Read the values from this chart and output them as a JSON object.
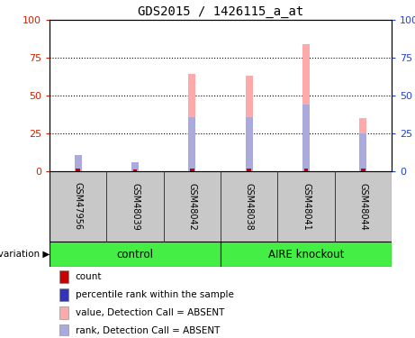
{
  "title": "GDS2015 / 1426115_a_at",
  "samples": [
    "GSM47956",
    "GSM48039",
    "GSM48042",
    "GSM48038",
    "GSM48041",
    "GSM48044"
  ],
  "control_indices": [
    0,
    1,
    2
  ],
  "knockout_indices": [
    3,
    4,
    5
  ],
  "group_names": [
    "control",
    "AIRE knockout"
  ],
  "group_color": "#44ee44",
  "sample_box_color": "#c8c8c8",
  "pink_bar_heights": [
    10,
    6,
    64,
    63,
    84,
    35
  ],
  "blue_bar_heights": [
    11,
    6,
    36,
    36,
    44,
    25
  ],
  "red_bar_heights": [
    2,
    1,
    2,
    2,
    2,
    2
  ],
  "bar_width": 0.13,
  "ylim": [
    0,
    100
  ],
  "yticks": [
    0,
    25,
    50,
    75,
    100
  ],
  "left_tick_color": "#cc2200",
  "right_tick_color": "#2244cc",
  "background_color": "#ffffff",
  "legend_items": [
    {
      "label": "count",
      "color": "#cc0000"
    },
    {
      "label": "percentile rank within the sample",
      "color": "#3333bb"
    },
    {
      "label": "value, Detection Call = ABSENT",
      "color": "#ffaaaa"
    },
    {
      "label": "rank, Detection Call = ABSENT",
      "color": "#aaaadd"
    }
  ]
}
